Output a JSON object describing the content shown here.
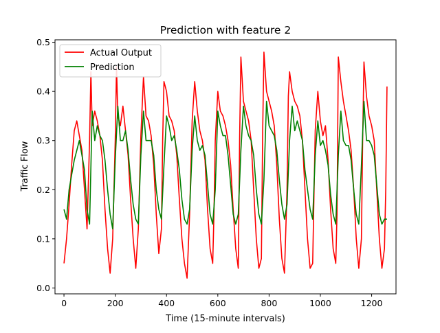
{
  "chart_data": {
    "type": "line",
    "title": "Prediction with feature 2",
    "xlabel": "Time (15-minute intervals)",
    "ylabel": "Traffic Flow",
    "xlim": [
      -35,
      1295
    ],
    "ylim": [
      -0.012,
      0.505
    ],
    "xticks": [
      0,
      200,
      400,
      600,
      800,
      1000,
      1200
    ],
    "yticks": [
      0.0,
      0.1,
      0.2,
      0.3,
      0.4,
      0.5
    ],
    "xtick_labels": [
      "0",
      "200",
      "400",
      "600",
      "800",
      "1000",
      "1200"
    ],
    "ytick_labels": [
      "0.0",
      "0.1",
      "0.2",
      "0.3",
      "0.4",
      "0.5"
    ],
    "grid": false,
    "legend_position": "top-left",
    "series": [
      {
        "name": "Actual Output",
        "color": "#ff0000",
        "x": [
          0,
          10,
          20,
          30,
          40,
          50,
          60,
          70,
          80,
          90,
          100,
          105,
          110,
          120,
          130,
          140,
          150,
          160,
          170,
          180,
          190,
          200,
          205,
          210,
          220,
          230,
          240,
          250,
          260,
          270,
          280,
          290,
          300,
          310,
          320,
          330,
          340,
          350,
          360,
          370,
          380,
          385,
          390,
          400,
          410,
          420,
          430,
          440,
          450,
          460,
          470,
          480,
          490,
          500,
          510,
          520,
          530,
          540,
          550,
          560,
          570,
          580,
          585,
          590,
          600,
          610,
          620,
          630,
          640,
          650,
          660,
          670,
          680,
          685,
          690,
          700,
          710,
          720,
          730,
          740,
          750,
          760,
          770,
          775,
          780,
          790,
          800,
          810,
          820,
          830,
          840,
          850,
          860,
          870,
          875,
          880,
          890,
          900,
          910,
          920,
          930,
          940,
          950,
          960,
          970,
          980,
          990,
          1000,
          1010,
          1020,
          1030,
          1040,
          1050,
          1060,
          1065,
          1070,
          1080,
          1090,
          1100,
          1110,
          1120,
          1130,
          1140,
          1150,
          1160,
          1165,
          1170,
          1180,
          1190,
          1200,
          1210,
          1220,
          1230,
          1240,
          1250,
          1255,
          1260
        ],
        "y": [
          0.05,
          0.1,
          0.17,
          0.25,
          0.32,
          0.34,
          0.31,
          0.28,
          0.2,
          0.12,
          0.3,
          0.44,
          0.33,
          0.36,
          0.34,
          0.31,
          0.26,
          0.16,
          0.08,
          0.03,
          0.1,
          0.3,
          0.45,
          0.35,
          0.33,
          0.37,
          0.32,
          0.27,
          0.18,
          0.1,
          0.04,
          0.12,
          0.31,
          0.43,
          0.35,
          0.34,
          0.31,
          0.25,
          0.15,
          0.07,
          0.12,
          0.3,
          0.42,
          0.4,
          0.35,
          0.34,
          0.32,
          0.27,
          0.18,
          0.1,
          0.05,
          0.02,
          0.15,
          0.34,
          0.42,
          0.36,
          0.32,
          0.3,
          0.26,
          0.16,
          0.08,
          0.05,
          0.15,
          0.3,
          0.4,
          0.36,
          0.35,
          0.33,
          0.3,
          0.25,
          0.16,
          0.08,
          0.04,
          0.3,
          0.47,
          0.38,
          0.36,
          0.34,
          0.3,
          0.2,
          0.1,
          0.04,
          0.06,
          0.32,
          0.48,
          0.4,
          0.38,
          0.36,
          0.33,
          0.25,
          0.14,
          0.06,
          0.03,
          0.2,
          0.39,
          0.44,
          0.4,
          0.38,
          0.37,
          0.35,
          0.3,
          0.2,
          0.1,
          0.04,
          0.05,
          0.32,
          0.4,
          0.34,
          0.31,
          0.33,
          0.26,
          0.16,
          0.08,
          0.05,
          0.15,
          0.47,
          0.42,
          0.38,
          0.35,
          0.32,
          0.28,
          0.2,
          0.1,
          0.04,
          0.1,
          0.3,
          0.46,
          0.39,
          0.35,
          0.33,
          0.3,
          0.2,
          0.1,
          0.04,
          0.08,
          0.2,
          0.41
        ]
      },
      {
        "name": "Prediction",
        "color": "#008000",
        "x": [
          0,
          10,
          20,
          30,
          40,
          50,
          60,
          70,
          80,
          90,
          100,
          110,
          120,
          130,
          140,
          150,
          160,
          170,
          180,
          190,
          200,
          210,
          220,
          230,
          240,
          250,
          260,
          270,
          280,
          290,
          300,
          310,
          320,
          330,
          340,
          350,
          360,
          370,
          380,
          390,
          400,
          410,
          420,
          430,
          440,
          450,
          460,
          470,
          480,
          490,
          500,
          510,
          520,
          530,
          540,
          550,
          560,
          570,
          580,
          590,
          600,
          610,
          620,
          630,
          640,
          650,
          660,
          670,
          680,
          690,
          700,
          710,
          720,
          730,
          740,
          750,
          760,
          770,
          780,
          790,
          800,
          810,
          820,
          830,
          840,
          850,
          860,
          870,
          880,
          890,
          900,
          910,
          920,
          930,
          940,
          950,
          960,
          970,
          980,
          990,
          1000,
          1010,
          1020,
          1030,
          1040,
          1050,
          1060,
          1070,
          1080,
          1090,
          1100,
          1110,
          1120,
          1130,
          1140,
          1150,
          1160,
          1170,
          1180,
          1190,
          1200,
          1210,
          1220,
          1230,
          1240,
          1250,
          1260
        ],
        "y": [
          0.16,
          0.14,
          0.2,
          0.23,
          0.26,
          0.28,
          0.3,
          0.27,
          0.24,
          0.16,
          0.13,
          0.36,
          0.3,
          0.33,
          0.31,
          0.3,
          0.26,
          0.2,
          0.15,
          0.12,
          0.26,
          0.37,
          0.3,
          0.3,
          0.32,
          0.28,
          0.22,
          0.17,
          0.14,
          0.13,
          0.27,
          0.36,
          0.3,
          0.3,
          0.3,
          0.27,
          0.2,
          0.16,
          0.14,
          0.25,
          0.35,
          0.33,
          0.3,
          0.31,
          0.28,
          0.24,
          0.18,
          0.14,
          0.13,
          0.16,
          0.28,
          0.35,
          0.3,
          0.28,
          0.29,
          0.27,
          0.21,
          0.15,
          0.13,
          0.2,
          0.36,
          0.33,
          0.31,
          0.31,
          0.27,
          0.21,
          0.15,
          0.13,
          0.15,
          0.28,
          0.37,
          0.33,
          0.31,
          0.3,
          0.27,
          0.2,
          0.15,
          0.13,
          0.22,
          0.38,
          0.33,
          0.32,
          0.31,
          0.28,
          0.22,
          0.17,
          0.14,
          0.17,
          0.3,
          0.37,
          0.32,
          0.34,
          0.32,
          0.3,
          0.24,
          0.2,
          0.16,
          0.14,
          0.27,
          0.34,
          0.29,
          0.3,
          0.28,
          0.25,
          0.19,
          0.15,
          0.13,
          0.27,
          0.36,
          0.3,
          0.29,
          0.29,
          0.26,
          0.2,
          0.15,
          0.13,
          0.25,
          0.38,
          0.3,
          0.3,
          0.29,
          0.27,
          0.21,
          0.15,
          0.13,
          0.14,
          0.14
        ]
      }
    ]
  }
}
